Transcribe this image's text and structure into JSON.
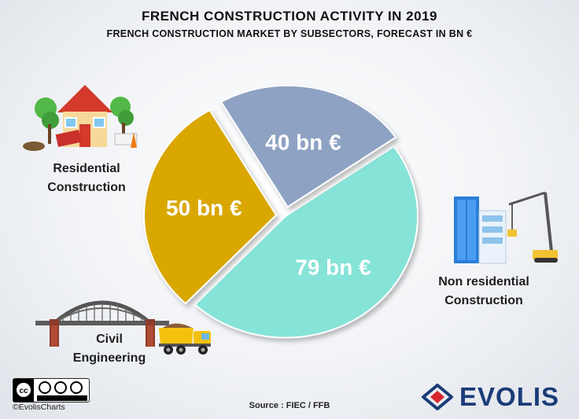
{
  "chart_data": {
    "type": "pie",
    "title": "FRENCH CONSTRUCTION  ACTIVITY IN 2019",
    "subtitle": "FRENCH CONSTRUCTION  MARKET BY SUBSECTORS, FORECAST  IN BN €",
    "slices": [
      {
        "name": "Residential Construction",
        "value": 79,
        "data_label": "79 bn €",
        "color": "#86e3d8"
      },
      {
        "name": "Non residential Construction",
        "value": 50,
        "data_label": "50 bn €",
        "color": "#d9a700"
      },
      {
        "name": "Civil Engineering",
        "value": 40,
        "data_label": "40 bn €",
        "color": "#8ea2c3"
      }
    ]
  },
  "labels": {
    "residential": [
      "Residential",
      "Construction"
    ],
    "nonresidential": [
      "Non residential",
      "Construction"
    ],
    "civil": [
      "Civil",
      "Engineering"
    ]
  },
  "source": "Source : FIEC  / FFB",
  "credit": "©EvolisCharts",
  "brand": "EVOLIS",
  "icons": [
    "house-icon",
    "office-building-crane-icon",
    "bridge-icon",
    "dump-truck-icon",
    "creative-commons-icon",
    "evolis-logo-icon"
  ]
}
